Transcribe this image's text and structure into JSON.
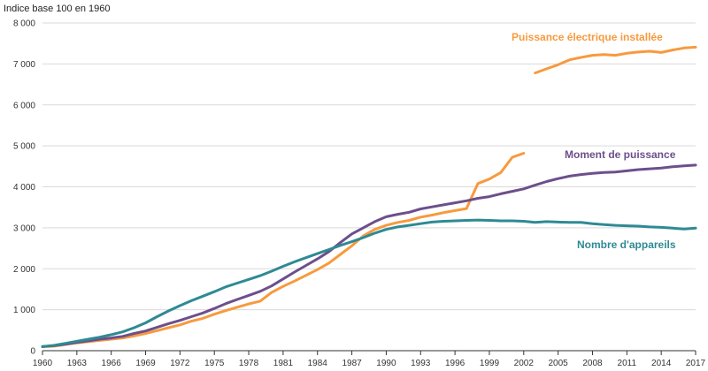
{
  "chart_data": {
    "type": "line",
    "title": "",
    "ylabel": "Indice base 100 en 1960",
    "xlabel": "",
    "xlim": [
      1960,
      2017
    ],
    "ylim": [
      0,
      8000
    ],
    "grid": true,
    "x_ticks": [
      1960,
      1963,
      1966,
      1969,
      1972,
      1975,
      1978,
      1981,
      1984,
      1987,
      1990,
      1993,
      1996,
      1999,
      2002,
      2005,
      2008,
      2011,
      2014,
      2017
    ],
    "y_ticks": [
      0,
      1000,
      2000,
      3000,
      4000,
      5000,
      6000,
      7000,
      8000
    ],
    "x_tick_labels": [
      "1960",
      "1963",
      "1966",
      "1969",
      "1972",
      "1975",
      "1978",
      "1981",
      "1984",
      "1987",
      "1990",
      "1993",
      "1996",
      "1999",
      "2002",
      "2005",
      "2008",
      "2011",
      "2014",
      "2017"
    ],
    "y_tick_labels": [
      "0",
      "1 000",
      "2 000",
      "3 000",
      "4 000",
      "5 000",
      "6 000",
      "7 000",
      "8 000"
    ],
    "series": [
      {
        "name": "Puissance électrique installée",
        "color": "#f79a3e",
        "segments": [
          {
            "x": [
              1960,
              1961,
              1962,
              1963,
              1964,
              1965,
              1966,
              1967,
              1968,
              1969,
              1970,
              1971,
              1972,
              1973,
              1974,
              1975,
              1976,
              1977,
              1978,
              1979,
              1980,
              1981,
              1982,
              1983,
              1984,
              1985,
              1986,
              1987,
              1988,
              1989,
              1990,
              1991,
              1992,
              1993,
              1994,
              1995,
              1996,
              1997,
              1998,
              1999,
              2000,
              2001,
              2002
            ],
            "y": [
              100,
              110,
              150,
              190,
              220,
              250,
              280,
              310,
              360,
              420,
              490,
              560,
              630,
              720,
              790,
              890,
              980,
              1060,
              1140,
              1210,
              1420,
              1570,
              1700,
              1840,
              1980,
              2140,
              2350,
              2560,
              2800,
              2960,
              3060,
              3130,
              3180,
              3260,
              3310,
              3370,
              3420,
              3470,
              4080,
              4190,
              4350,
              4720,
              4820
            ]
          },
          {
            "x": [
              2003,
              2004,
              2005,
              2006,
              2007,
              2008,
              2009,
              2010,
              2011,
              2012,
              2013,
              2014,
              2015,
              2016,
              2017
            ],
            "y": [
              6780,
              6880,
              6980,
              7100,
              7160,
              7210,
              7230,
              7210,
              7260,
              7290,
              7310,
              7280,
              7340,
              7390,
              7410
            ]
          }
        ]
      },
      {
        "name": "Moment de puissance",
        "color": "#6c4f8c",
        "segments": [
          {
            "x": [
              1960,
              1961,
              1962,
              1963,
              1964,
              1965,
              1966,
              1967,
              1968,
              1969,
              1970,
              1971,
              1972,
              1973,
              1974,
              1975,
              1976,
              1977,
              1978,
              1979,
              1980,
              1981,
              1982,
              1983,
              1984,
              1985,
              1986,
              1987,
              1988,
              1989,
              1990,
              1991,
              1992,
              1993,
              1994,
              1995,
              1996,
              1997,
              1998,
              1999,
              2000,
              2001,
              2002,
              2003,
              2004,
              2005,
              2006,
              2007,
              2008,
              2009,
              2010,
              2011,
              2012,
              2013,
              2014,
              2015,
              2016,
              2017
            ],
            "y": [
              100,
              120,
              160,
              200,
              240,
              280,
              310,
              350,
              420,
              480,
              570,
              660,
              740,
              830,
              920,
              1030,
              1150,
              1250,
              1350,
              1450,
              1580,
              1750,
              1920,
              2080,
              2240,
              2420,
              2640,
              2850,
              3000,
              3150,
              3270,
              3330,
              3380,
              3460,
              3510,
              3560,
              3610,
              3660,
              3720,
              3760,
              3830,
              3890,
              3950,
              4040,
              4130,
              4200,
              4260,
              4300,
              4330,
              4350,
              4360,
              4390,
              4420,
              4440,
              4460,
              4490,
              4510,
              4530
            ]
          }
        ]
      },
      {
        "name": "Nombre d'appareils",
        "color": "#2e8a94",
        "segments": [
          {
            "x": [
              1960,
              1961,
              1962,
              1963,
              1964,
              1965,
              1966,
              1967,
              1968,
              1969,
              1970,
              1971,
              1972,
              1973,
              1974,
              1975,
              1976,
              1977,
              1978,
              1979,
              1980,
              1981,
              1982,
              1983,
              1984,
              1985,
              1986,
              1987,
              1988,
              1989,
              1990,
              1991,
              1992,
              1993,
              1994,
              1995,
              1996,
              1997,
              1998,
              1999,
              2000,
              2001,
              2002,
              2003,
              2004,
              2005,
              2006,
              2007,
              2008,
              2009,
              2010,
              2011,
              2012,
              2013,
              2014,
              2015,
              2016,
              2017
            ],
            "y": [
              100,
              130,
              180,
              230,
              280,
              330,
              390,
              460,
              560,
              680,
              830,
              970,
              1100,
              1220,
              1330,
              1440,
              1560,
              1650,
              1740,
              1830,
              1940,
              2060,
              2170,
              2270,
              2370,
              2470,
              2570,
              2660,
              2760,
              2870,
              2960,
              3020,
              3060,
              3100,
              3140,
              3160,
              3170,
              3180,
              3190,
              3180,
              3170,
              3170,
              3160,
              3130,
              3150,
              3140,
              3130,
              3130,
              3100,
              3080,
              3060,
              3050,
              3040,
              3020,
              3010,
              2990,
              2970,
              2990
            ]
          }
        ]
      }
    ]
  },
  "labels": {
    "puissance": "Puissance électrique installée",
    "moment": "Moment de puissance",
    "nombre": "Nombre d'appareils"
  }
}
